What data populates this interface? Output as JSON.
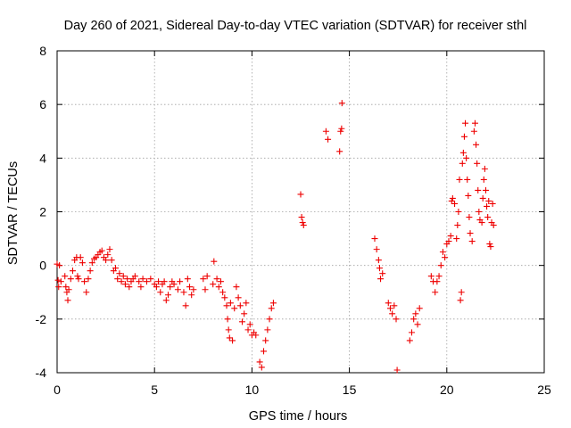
{
  "chart_data": {
    "type": "scatter",
    "title": "Day 260 of 2021, Sidereal Day-to-day VTEC variation (SDTVAR) for receiver sthl",
    "xlabel": "GPS time / hours",
    "ylabel": "SDTVAR / TECUs",
    "xlim": [
      0,
      25
    ],
    "ylim": [
      -4,
      8
    ],
    "xticks": [
      "0",
      "5",
      "10",
      "15",
      "20",
      "25"
    ],
    "yticks": [
      "-4",
      "-2",
      "0",
      "2",
      "4",
      "6",
      "8"
    ],
    "grid": true,
    "marker": "+",
    "color": "#ee0000",
    "series": [
      {
        "name": "SDTVAR",
        "points": [
          [
            0.0,
            0.05
          ],
          [
            0.05,
            -0.55
          ],
          [
            0.08,
            -0.8
          ],
          [
            0.12,
            0.0
          ],
          [
            0.2,
            -0.6
          ],
          [
            0.4,
            -0.4
          ],
          [
            0.45,
            -0.8
          ],
          [
            0.5,
            -1.0
          ],
          [
            0.55,
            -1.3
          ],
          [
            0.6,
            -0.9
          ],
          [
            0.7,
            -0.5
          ],
          [
            0.8,
            -0.2
          ],
          [
            0.9,
            0.2
          ],
          [
            1.0,
            0.3
          ],
          [
            1.05,
            -0.4
          ],
          [
            1.1,
            -0.5
          ],
          [
            1.2,
            0.3
          ],
          [
            1.3,
            0.1
          ],
          [
            1.4,
            -0.6
          ],
          [
            1.5,
            -1.0
          ],
          [
            1.6,
            -0.5
          ],
          [
            1.7,
            -0.2
          ],
          [
            1.8,
            0.1
          ],
          [
            1.9,
            0.25
          ],
          [
            2.0,
            0.3
          ],
          [
            2.1,
            0.4
          ],
          [
            2.2,
            0.5
          ],
          [
            2.3,
            0.55
          ],
          [
            2.4,
            0.3
          ],
          [
            2.5,
            0.2
          ],
          [
            2.6,
            0.4
          ],
          [
            2.7,
            0.6
          ],
          [
            2.8,
            0.2
          ],
          [
            2.9,
            -0.2
          ],
          [
            3.0,
            -0.1
          ],
          [
            3.1,
            -0.5
          ],
          [
            3.2,
            -0.3
          ],
          [
            3.3,
            -0.6
          ],
          [
            3.4,
            -0.4
          ],
          [
            3.5,
            -0.7
          ],
          [
            3.6,
            -0.5
          ],
          [
            3.7,
            -0.8
          ],
          [
            3.8,
            -0.6
          ],
          [
            3.9,
            -0.5
          ],
          [
            4.0,
            -0.4
          ],
          [
            4.2,
            -0.6
          ],
          [
            4.3,
            -0.8
          ],
          [
            4.4,
            -0.5
          ],
          [
            4.6,
            -0.6
          ],
          [
            4.8,
            -0.5
          ],
          [
            5.0,
            -0.7
          ],
          [
            5.1,
            -0.8
          ],
          [
            5.2,
            -0.6
          ],
          [
            5.3,
            -1.0
          ],
          [
            5.4,
            -0.7
          ],
          [
            5.5,
            -0.6
          ],
          [
            5.6,
            -1.3
          ],
          [
            5.7,
            -1.1
          ],
          [
            5.8,
            -0.8
          ],
          [
            5.9,
            -0.6
          ],
          [
            6.0,
            -0.7
          ],
          [
            6.2,
            -0.9
          ],
          [
            6.3,
            -0.6
          ],
          [
            6.5,
            -1.0
          ],
          [
            6.6,
            -1.5
          ],
          [
            6.7,
            -0.5
          ],
          [
            6.8,
            -0.8
          ],
          [
            6.9,
            -1.1
          ],
          [
            7.0,
            -0.9
          ],
          [
            7.5,
            -0.5
          ],
          [
            7.6,
            -0.9
          ],
          [
            7.7,
            -0.4
          ],
          [
            8.0,
            -0.7
          ],
          [
            8.05,
            0.15
          ],
          [
            8.2,
            -0.5
          ],
          [
            8.3,
            -0.8
          ],
          [
            8.4,
            -0.6
          ],
          [
            8.5,
            -1.0
          ],
          [
            8.6,
            -1.2
          ],
          [
            8.7,
            -1.5
          ],
          [
            8.75,
            -2.0
          ],
          [
            8.8,
            -2.4
          ],
          [
            8.85,
            -2.7
          ],
          [
            8.9,
            -1.4
          ],
          [
            9.0,
            -2.8
          ],
          [
            9.1,
            -1.6
          ],
          [
            9.2,
            -0.8
          ],
          [
            9.3,
            -1.2
          ],
          [
            9.4,
            -1.5
          ],
          [
            9.5,
            -2.1
          ],
          [
            9.6,
            -1.8
          ],
          [
            9.7,
            -1.4
          ],
          [
            9.8,
            -2.4
          ],
          [
            9.9,
            -2.2
          ],
          [
            10.0,
            -2.6
          ],
          [
            10.1,
            -2.5
          ],
          [
            10.2,
            -2.6
          ],
          [
            10.4,
            -3.6
          ],
          [
            10.5,
            -3.8
          ],
          [
            10.6,
            -3.2
          ],
          [
            10.7,
            -2.8
          ],
          [
            10.8,
            -2.4
          ],
          [
            10.9,
            -2.0
          ],
          [
            11.0,
            -1.6
          ],
          [
            11.1,
            -1.4
          ],
          [
            12.5,
            2.65
          ],
          [
            12.55,
            1.8
          ],
          [
            12.6,
            1.6
          ],
          [
            12.65,
            1.5
          ],
          [
            13.8,
            5.0
          ],
          [
            13.9,
            4.7
          ],
          [
            14.5,
            4.25
          ],
          [
            14.55,
            5.0
          ],
          [
            14.6,
            5.1
          ],
          [
            14.62,
            6.05
          ],
          [
            16.3,
            1.0
          ],
          [
            16.4,
            0.6
          ],
          [
            16.5,
            0.2
          ],
          [
            16.55,
            -0.1
          ],
          [
            16.6,
            -0.5
          ],
          [
            16.7,
            -0.3
          ],
          [
            17.0,
            -1.4
          ],
          [
            17.1,
            -1.6
          ],
          [
            17.2,
            -1.8
          ],
          [
            17.3,
            -1.5
          ],
          [
            17.4,
            -2.0
          ],
          [
            17.45,
            -3.9
          ],
          [
            18.1,
            -2.8
          ],
          [
            18.2,
            -2.5
          ],
          [
            18.3,
            -2.0
          ],
          [
            18.4,
            -1.8
          ],
          [
            18.5,
            -2.2
          ],
          [
            18.6,
            -1.6
          ],
          [
            19.2,
            -0.4
          ],
          [
            19.3,
            -0.6
          ],
          [
            19.4,
            -1.0
          ],
          [
            19.5,
            -0.6
          ],
          [
            19.6,
            -0.4
          ],
          [
            19.7,
            0.0
          ],
          [
            19.8,
            0.5
          ],
          [
            19.9,
            0.3
          ],
          [
            20.0,
            0.8
          ],
          [
            20.1,
            0.9
          ],
          [
            20.2,
            1.1
          ],
          [
            20.25,
            2.4
          ],
          [
            20.3,
            2.5
          ],
          [
            20.4,
            2.3
          ],
          [
            20.5,
            1.0
          ],
          [
            20.55,
            1.5
          ],
          [
            20.6,
            2.0
          ],
          [
            20.65,
            3.2
          ],
          [
            20.7,
            -1.3
          ],
          [
            20.75,
            -1.0
          ],
          [
            20.8,
            3.8
          ],
          [
            20.85,
            4.2
          ],
          [
            20.9,
            4.8
          ],
          [
            20.95,
            5.3
          ],
          [
            21.0,
            4.0
          ],
          [
            21.05,
            3.2
          ],
          [
            21.1,
            2.6
          ],
          [
            21.15,
            1.8
          ],
          [
            21.2,
            1.2
          ],
          [
            21.3,
            0.9
          ],
          [
            21.4,
            5.0
          ],
          [
            21.45,
            5.3
          ],
          [
            21.5,
            4.5
          ],
          [
            21.55,
            3.8
          ],
          [
            21.6,
            2.8
          ],
          [
            21.65,
            2.0
          ],
          [
            21.7,
            1.7
          ],
          [
            21.8,
            1.6
          ],
          [
            21.85,
            2.5
          ],
          [
            21.9,
            3.2
          ],
          [
            21.95,
            3.6
          ],
          [
            22.0,
            2.8
          ],
          [
            22.05,
            2.2
          ],
          [
            22.1,
            1.8
          ],
          [
            22.15,
            2.4
          ],
          [
            22.2,
            0.8
          ],
          [
            22.25,
            0.7
          ],
          [
            22.3,
            1.6
          ],
          [
            22.35,
            2.3
          ],
          [
            22.4,
            1.5
          ]
        ]
      }
    ]
  }
}
